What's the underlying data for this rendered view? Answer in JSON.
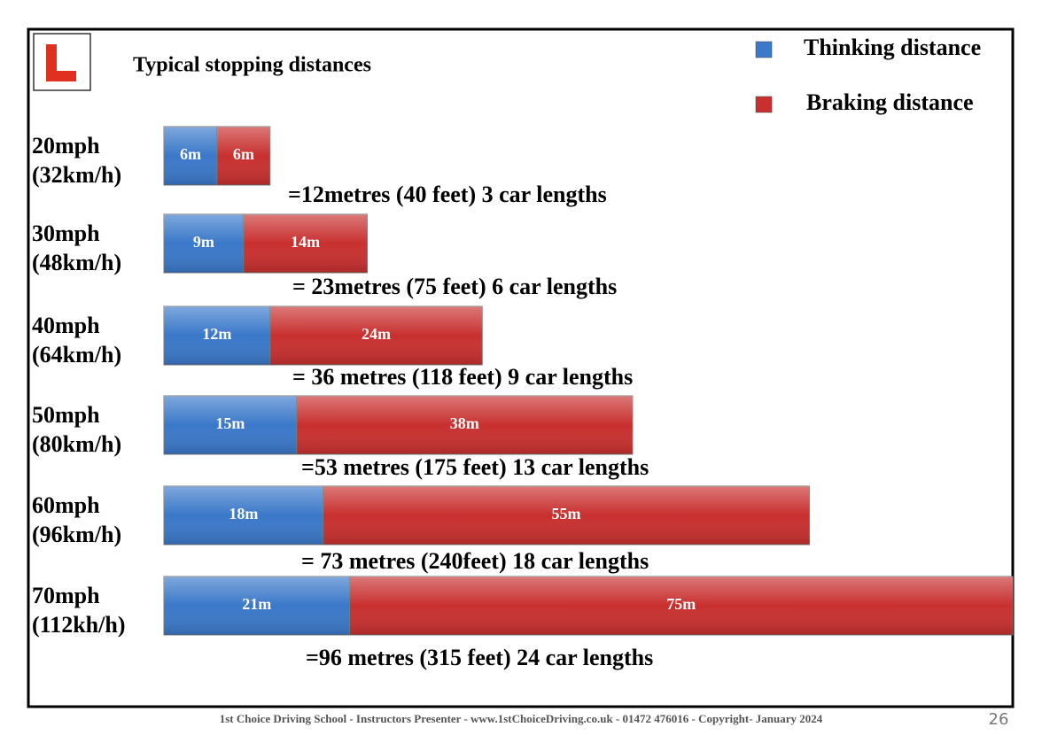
{
  "chart_data": {
    "type": "stacked-bar-horizontal",
    "title": "Typical stopping distances",
    "categories": [
      "20mph",
      "30mph",
      "40mph",
      "50mph",
      "60mph",
      "70mph"
    ],
    "category_subtitles": [
      "(32km/h)",
      "(48km/h)",
      "(64km/h)",
      "(80km/h)",
      "(96km/h)",
      "(112kh/h)"
    ],
    "series": [
      {
        "name": "Thinking distance",
        "color": "#3a78c9",
        "values": [
          6,
          9,
          12,
          15,
          18,
          21
        ],
        "value_labels": [
          "6m",
          "9m",
          "12m",
          "15m",
          "18m",
          "21m"
        ]
      },
      {
        "name": "Braking distance",
        "color": "#c8302f",
        "values": [
          6,
          14,
          24,
          38,
          55,
          75
        ],
        "value_labels": [
          "6m",
          "14m",
          "24m",
          "38m",
          "55m",
          "75m"
        ]
      }
    ],
    "totals": [
      "=12metres (40 feet) 3 car lengths",
      "= 23metres (75 feet) 6 car lengths",
      "= 36 metres (118 feet) 9 car lengths",
      "=53 metres (175 feet) 13 car lengths",
      "= 73 metres (240feet) 18 car lengths",
      "=96 metres (315 feet) 24 car lengths"
    ],
    "xlim": [
      0,
      96
    ]
  },
  "footer": "1st Choice Driving School - Instructors Presenter - www.1stChoiceDriving.co.uk - 01472 476016 - Copyright- January 2024",
  "page_number": "26"
}
